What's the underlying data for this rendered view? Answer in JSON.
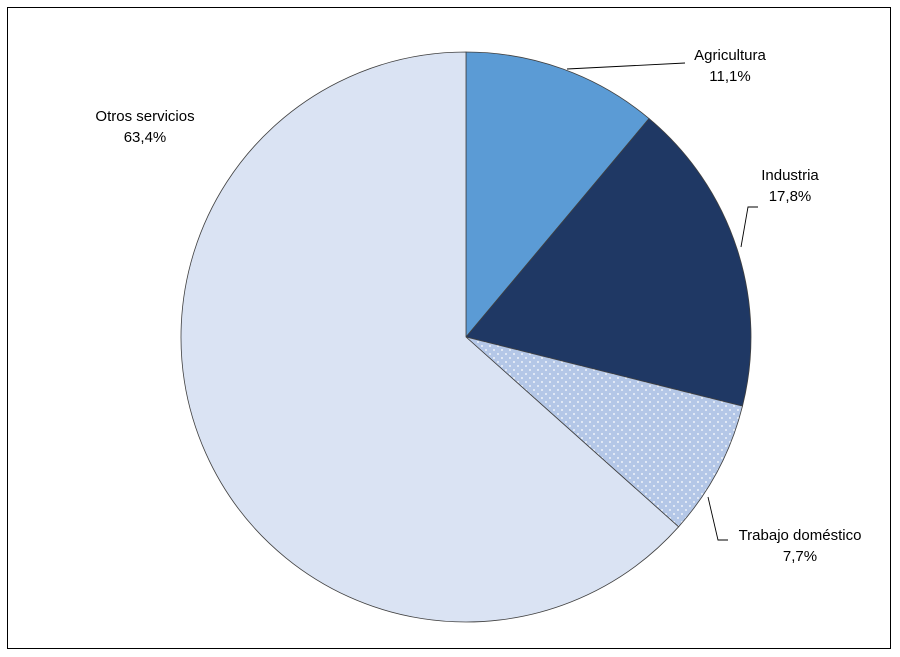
{
  "chart_data": {
    "type": "pie",
    "title": "",
    "start_angle_deg": 0,
    "direction": "clockwise",
    "slices": [
      {
        "name": "Agricultura",
        "value": 11.1,
        "label": "11,1%",
        "color": "#5B9BD5",
        "pattern": "none"
      },
      {
        "name": "Industria",
        "value": 17.8,
        "label": "17,8%",
        "color": "#1F3864",
        "pattern": "none"
      },
      {
        "name": "Trabajo doméstico",
        "value": 7.7,
        "label": "7,7%",
        "color": "#B4C7E7",
        "pattern": "dots"
      },
      {
        "name": "Otros servicios",
        "value": 63.4,
        "label": "63,4%",
        "color": "#DAE3F3",
        "pattern": "none"
      }
    ],
    "legend": "none",
    "data_labels": "outside-with-leader-lines"
  }
}
